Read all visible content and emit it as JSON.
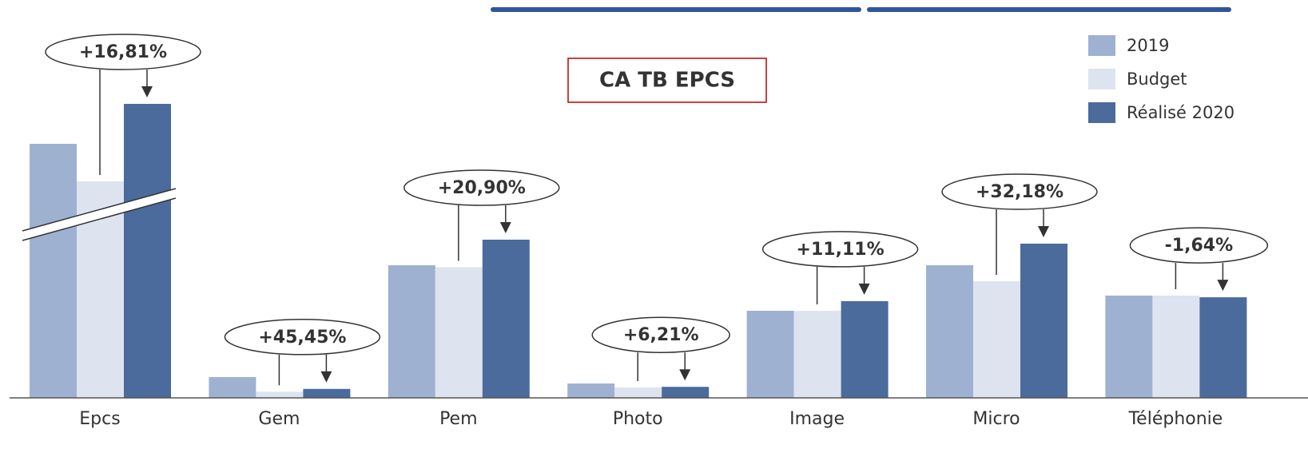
{
  "chart_data": {
    "type": "bar",
    "title": "CA TB EPCS",
    "categories": [
      "Epcs",
      "Gem",
      "Pem",
      "Photo",
      "Image",
      "Micro",
      "Téléphonie"
    ],
    "series": [
      {
        "name": "2019",
        "color": "#9fb1d0",
        "values": [
          624,
          26,
          166,
          18,
          109,
          166,
          128
        ]
      },
      {
        "name": "Budget",
        "color": "#dde3ef",
        "values": [
          577,
          7.7,
          163.5,
          13,
          109,
          146,
          128
        ]
      },
      {
        "name": "Réalisé 2020",
        "color": "#4a6b9c",
        "values": [
          674,
          11.2,
          198,
          13.8,
          121.1,
          193,
          125.9
        ]
      }
    ],
    "annotations": [
      "+16,81%",
      "+45,45%",
      "+20,90%",
      "+6,21%",
      "+11,11%",
      "+32,18%",
      "-1,64%"
    ],
    "ylim": [
      0,
      400
    ],
    "axis_break": [
      236,
      542
    ]
  }
}
